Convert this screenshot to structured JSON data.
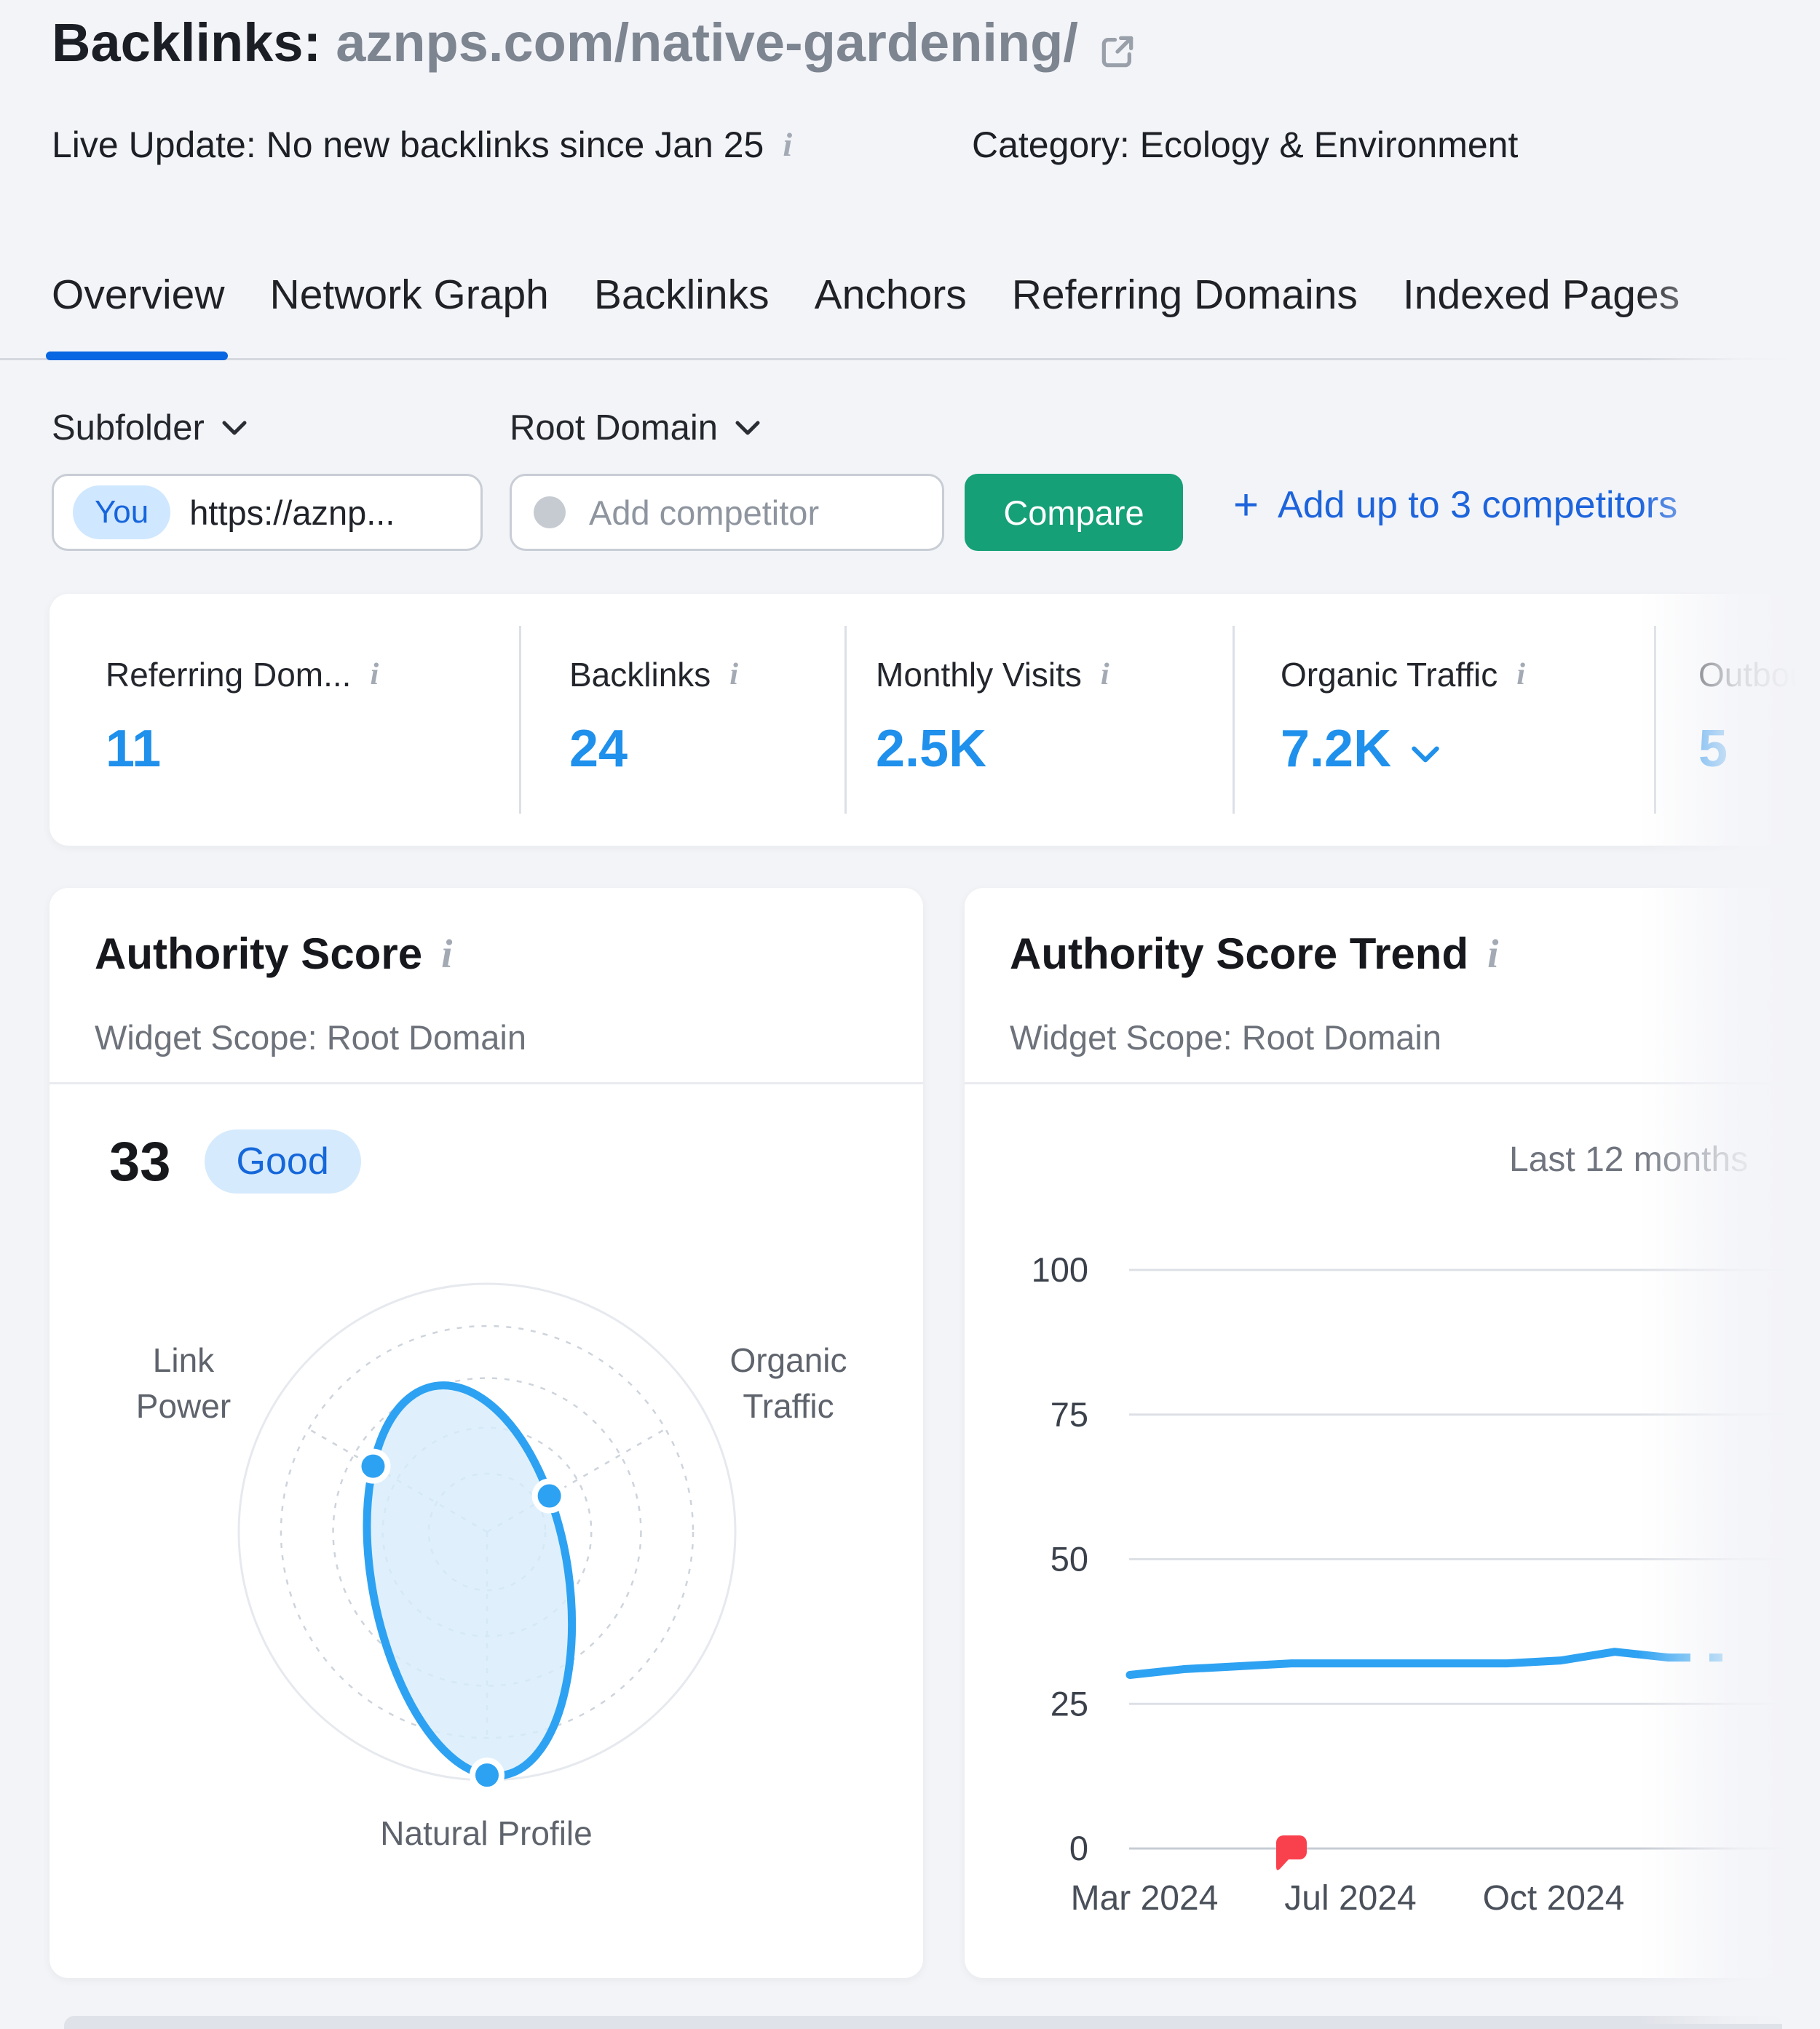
{
  "header": {
    "title_prefix": "Backlinks:",
    "title_url": "aznps.com/native-gardening/",
    "live_update": "Live Update: No new backlinks since Jan 25",
    "category": "Category: Ecology & Environment"
  },
  "tabs": {
    "active": "Overview",
    "items": [
      "Overview",
      "Network Graph",
      "Backlinks",
      "Anchors",
      "Referring Domains",
      "Indexed Pages"
    ]
  },
  "filters": {
    "scope_label": "Subfolder",
    "competitor_scope_label": "Root Domain",
    "you_badge": "You",
    "you_url": "https://aznp...",
    "competitor_placeholder": "Add competitor",
    "compare_button": "Compare",
    "plus": "+",
    "add_competitors": "Add up to 3 competitors"
  },
  "metrics": {
    "items": [
      {
        "label": "Referring Dom...",
        "value": "11"
      },
      {
        "label": "Backlinks",
        "value": "24"
      },
      {
        "label": "Monthly Visits",
        "value": "2.5K"
      },
      {
        "label": "Organic Traffic",
        "value": "7.2K"
      },
      {
        "label": "Outbound",
        "value": "5"
      }
    ]
  },
  "authority_score": {
    "title": "Authority Score",
    "scope": "Widget Scope: Root Domain",
    "score": "33",
    "rating": "Good",
    "axis_labels": {
      "a1_line1": "Link",
      "a1_line2": "Power",
      "a2_line1": "Organic",
      "a2_line2": "Traffic",
      "a3": "Natural Profile"
    }
  },
  "trend": {
    "title": "Authority Score Trend",
    "scope": "Widget Scope: Root Domain",
    "range_label": "Last 12 months"
  },
  "colors": {
    "accent_blue": "#1d64dc",
    "value_blue": "#1f90ec",
    "chart_blue": "#2ea2f2",
    "radar_fill": "#d7ecfb",
    "radar_grid": "#ced4dc",
    "radar_outer_ring": "#e6e9ee",
    "green_button": "#16a077",
    "badge_bg": "#d5eafd",
    "badge_text": "#1567da",
    "marker_red": "#f9414e",
    "gridline": "#dde0e5",
    "gridline_zero": "#c7ccd3",
    "tab_underline": "#0766e1"
  },
  "chart_data": [
    {
      "type": "radar",
      "title": "Authority Score",
      "axes": [
        "Link Power",
        "Organic Traffic",
        "Natural Profile"
      ],
      "values_percent_of_max": [
        53,
        29,
        98
      ],
      "max": 100,
      "rings_dashed": [
        0.83,
        0.62,
        0.42,
        0.235
      ],
      "legend_position": "none"
    },
    {
      "type": "line",
      "title": "Authority Score Trend",
      "range_label": "Last 12 months",
      "series": [
        {
          "name": "Authority Score",
          "values": [
            30,
            31,
            31.5,
            32,
            32,
            32,
            32,
            32,
            32.5,
            34,
            33,
            33
          ]
        }
      ],
      "last_segment_dashed": true,
      "y_ticks": [
        0,
        25,
        50,
        75,
        100
      ],
      "ylim": [
        0,
        100
      ],
      "x_tick_labels": [
        "Mar 2024",
        "Jul 2024",
        "Oct 2024"
      ],
      "annotation_marker": {
        "point_index": 3,
        "at_value": 0
      },
      "grid": "horizontal",
      "legend_position": "none"
    }
  ]
}
